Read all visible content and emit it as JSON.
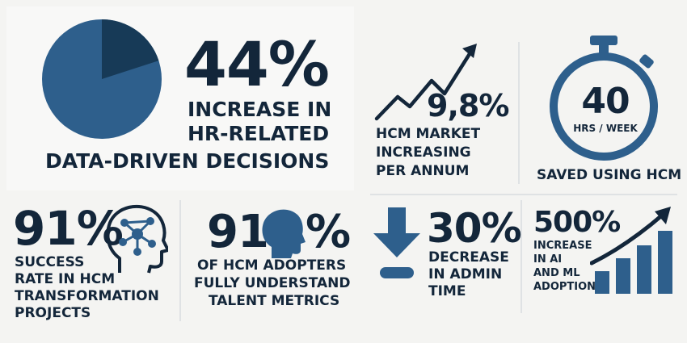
{
  "colors": {
    "navy": "#13263a",
    "blue": "#2e5f8c",
    "dark_slice": "#173a57",
    "background": "#f4f4f2"
  },
  "stats": {
    "hr_decisions": {
      "value": "44%",
      "line1": "INCREASE IN",
      "line2": "HR-RELATED",
      "line3": "DATA-DRIVEN DECISIONS",
      "pie_highlight_fraction": 0.2,
      "icon": "pie-chart-icon"
    },
    "market_growth": {
      "value": "9,8%",
      "line1": "HCM MARKET",
      "line2": "INCREASING",
      "line3": "PER ANNUM",
      "icon": "trend-up-arrow-icon"
    },
    "time_saved": {
      "value": "40",
      "unit": "HRS / WEEK",
      "caption": "SAVED USING HCM",
      "icon": "stopwatch-icon"
    },
    "success_rate": {
      "value": "91%",
      "line1": "SUCCESS",
      "line2": "RATE IN HCM",
      "line3": "TRANSFORMATION",
      "line4": "PROJECTS",
      "icon": "head-network-icon"
    },
    "talent_metrics": {
      "value_left": "91",
      "value_right": "%",
      "line1": "OF HCM ADOPTERS",
      "line2": "FULLY UNDERSTAND",
      "line3": "TALENT METRICS",
      "icon": "head-silhouette-icon"
    },
    "admin_time": {
      "value": "30%",
      "line1": "DECREASE",
      "line2": "IN ADMIN",
      "line3": "TIME",
      "icon": "down-arrow-icon"
    },
    "ai_adoption": {
      "value": "500%",
      "line1": "INCREASE",
      "line2": "IN AI",
      "line3": "AND ML",
      "line4": "ADOPTION",
      "icon": "bar-growth-icon"
    }
  }
}
